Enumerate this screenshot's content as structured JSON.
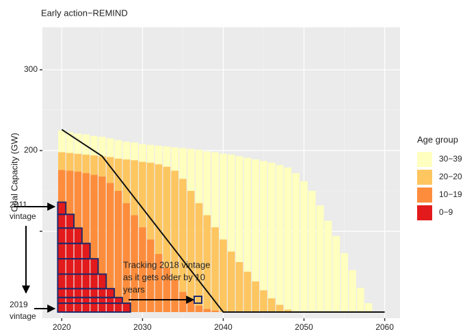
{
  "chart_data": {
    "type": "bar",
    "stacked": true,
    "title": "Early action−REMIND",
    "y_label": "Coal Capacity (GW)",
    "x": [
      2020,
      2021,
      2022,
      2023,
      2024,
      2025,
      2026,
      2027,
      2028,
      2029,
      2030,
      2031,
      2032,
      2033,
      2034,
      2035,
      2036,
      2037,
      2038,
      2039,
      2040,
      2041,
      2042,
      2043,
      2044,
      2045,
      2046,
      2047,
      2048,
      2049,
      2050,
      2051,
      2052,
      2053,
      2054,
      2055,
      2056,
      2057,
      2058
    ],
    "series": [
      {
        "name": "0−9",
        "color": "#e31a1c",
        "values": [
          136,
          121,
          104,
          85,
          66,
          47,
          29,
          18,
          11,
          0,
          0,
          0,
          0,
          0,
          0,
          0,
          0,
          0,
          0,
          0,
          0,
          0,
          0,
          0,
          0,
          0,
          0,
          0,
          0,
          0,
          0,
          0,
          0,
          0,
          0,
          0,
          0,
          0,
          0
        ]
      },
      {
        "name": "10−19",
        "color": "#fd8d3c",
        "values": [
          40,
          54,
          70,
          87,
          104,
          121,
          131,
          132,
          124,
          120,
          105,
          90,
          72,
          55,
          40,
          25,
          15,
          8,
          4,
          2,
          0,
          0,
          0,
          0,
          0,
          0,
          0,
          0,
          0,
          0,
          0,
          0,
          0,
          0,
          0,
          0,
          0,
          0,
          0
        ]
      },
      {
        "name": "20−20",
        "color": "#fec660",
        "values": [
          22,
          22,
          22,
          23,
          24,
          25,
          32,
          40,
          54,
          68,
          81,
          95,
          111,
          125,
          135,
          140,
          135,
          127,
          116,
          103,
          90,
          75,
          62,
          50,
          38,
          27,
          17,
          9,
          3,
          0,
          0,
          0,
          0,
          0,
          0,
          0,
          0,
          0,
          0
        ]
      },
      {
        "name": "30−39",
        "color": "#ffffbf",
        "values": [
          27,
          26,
          25,
          25,
          24,
          24,
          23,
          23,
          22,
          22,
          22,
          22,
          23,
          25,
          29,
          38,
          52,
          66,
          79,
          93,
          106,
          120,
          131,
          141,
          151,
          160,
          168,
          173,
          176,
          172,
          162,
          150,
          132,
          113,
          94,
          73,
          52,
          30,
          11
        ]
      }
    ],
    "line": {
      "x": [
        2020,
        2025,
        2040,
        2060
      ],
      "values": [
        226,
        193,
        0,
        0
      ],
      "color": "#111111"
    },
    "legend_title": "Age group",
    "legend_order": [
      3,
      2,
      1,
      0
    ],
    "xlim": [
      2017.6,
      2061.9
    ],
    "xticks": [
      2020,
      2030,
      2040,
      2050,
      2060
    ],
    "ylim": [
      -7.6,
      352.5
    ],
    "yticks": [
      {
        "value": 100,
        "label": null
      },
      200,
      300
    ],
    "grid": true,
    "annotations": {
      "start": [
        "2011",
        "vintage"
      ],
      "end": [
        "2019",
        "vintage"
      ],
      "tracking": [
        "Tracking 2018 vintage",
        "as it gets older by 10",
        "years"
      ]
    }
  }
}
